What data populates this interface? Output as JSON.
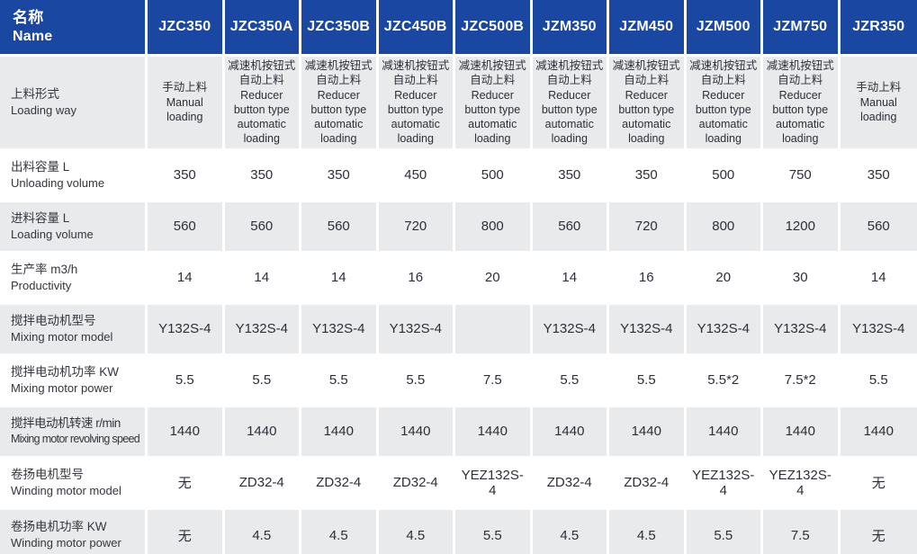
{
  "colors": {
    "header_bg": "#1a47a2",
    "header_text": "#ffffff",
    "shaded_row_bg": "#e9eaec",
    "row_bg": "#ffffff",
    "separator": "#ffffff",
    "body_text": "#2e2e38"
  },
  "table": {
    "name_header": {
      "cn": "名称",
      "en": "Name"
    },
    "models": [
      "JZC350",
      "JZC350A",
      "JZC350B",
      "JZC450B",
      "JZC500B",
      "JZM350",
      "JZM450",
      "JZM500",
      "JZM750",
      "JZR350"
    ],
    "rows": [
      {
        "label_cn": "上料形式",
        "label_en": "Loading way",
        "cells": [
          {
            "cn": "手动上料",
            "en": "Manual loading"
          },
          {
            "cn": "减速机按钮式自动上料",
            "en": "Reducer button type automatic loading"
          },
          {
            "cn": "减速机按钮式自动上料",
            "en": "Reducer button type automatic loading"
          },
          {
            "cn": "减速机按钮式自动上料",
            "en": "Reducer button type automatic loading"
          },
          {
            "cn": "减速机按钮式自动上料",
            "en": "Reducer button type automatic loading"
          },
          {
            "cn": "减速机按钮式自动上料",
            "en": "Reducer button type automatic loading"
          },
          {
            "cn": "减速机按钮式自动上料",
            "en": "Reducer button type automatic loading"
          },
          {
            "cn": "减速机按钮式自动上料",
            "en": "Reducer button type automatic loading"
          },
          {
            "cn": "减速机按钮式自动上料",
            "en": "Reducer button type automatic loading"
          },
          {
            "cn": "手动上料",
            "en": "Manual loading"
          }
        ]
      },
      {
        "label_cn": "出料容量 L",
        "label_en": "Unloading volume",
        "cells": [
          "350",
          "350",
          "350",
          "450",
          "500",
          "350",
          "350",
          "500",
          "750",
          "350"
        ]
      },
      {
        "label_cn": "进料容量 L",
        "label_en": "Loading volume",
        "cells": [
          "560",
          "560",
          "560",
          "720",
          "800",
          "560",
          "720",
          "800",
          "1200",
          "560"
        ]
      },
      {
        "label_cn": "生产率 m3/h",
        "label_en": "Productivity",
        "cells": [
          "14",
          "14",
          "14",
          "16",
          "20",
          "14",
          "16",
          "20",
          "30",
          "14"
        ]
      },
      {
        "label_cn": "搅拌电动机型号",
        "label_en": "Mixing motor model",
        "cells": [
          "Y132S-4",
          "Y132S-4",
          "Y132S-4",
          "Y132S-4",
          "",
          "Y132S-4",
          "Y132S-4",
          "Y132S-4",
          "Y132S-4",
          "Y132S-4"
        ]
      },
      {
        "label_cn": "搅拌电动机功率 KW",
        "label_en": "Mixing motor power",
        "cells": [
          "5.5",
          "5.5",
          "5.5",
          "5.5",
          "7.5",
          "5.5",
          "5.5",
          "5.5*2",
          "7.5*2",
          "5.5"
        ]
      },
      {
        "label_cn": "搅拌电动机转速 r/min",
        "label_en": "Mixing motor revolving speed",
        "cells": [
          "1440",
          "1440",
          "1440",
          "1440",
          "1440",
          "1440",
          "1440",
          "1440",
          "1440",
          "1440"
        ]
      },
      {
        "label_cn": "卷扬电机型号",
        "label_en": "Winding motor model",
        "cells": [
          "无",
          "ZD32-4",
          "ZD32-4",
          "ZD32-4",
          "YEZ132S-4",
          "ZD32-4",
          "ZD32-4",
          "YEZ132S-4",
          "YEZ132S-4",
          "无"
        ]
      },
      {
        "label_cn": "卷扬电机功率 KW",
        "label_en": "Winding motor power",
        "cells": [
          "无",
          "4.5",
          "4.5",
          "4.5",
          "5.5",
          "4.5",
          "4.5",
          "5.5",
          "7.5",
          "无"
        ]
      }
    ]
  }
}
